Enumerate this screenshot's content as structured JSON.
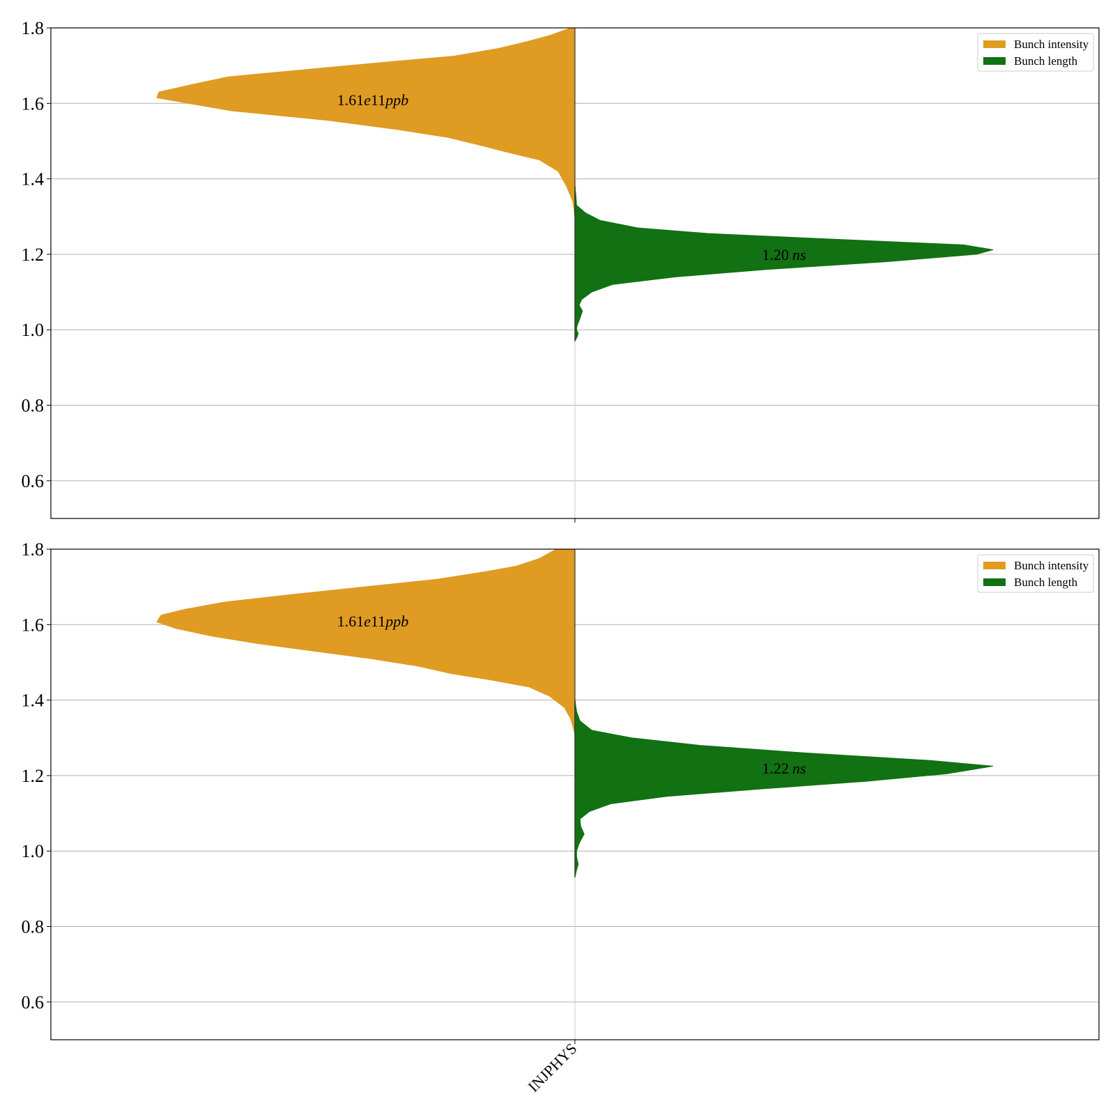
{
  "colors": {
    "intensity": "#df9b22",
    "length": "#127113",
    "grid": "#b0b0b0",
    "axis": "#000000"
  },
  "chart_data": [
    {
      "type": "violin",
      "title": "",
      "xlabel": "",
      "ylabel": "",
      "categories": [
        "INJPHYS"
      ],
      "show_category_labels": false,
      "ylim": [
        0.5,
        1.8
      ],
      "yticks": [
        0.6,
        0.8,
        1.0,
        1.2,
        1.4,
        1.6,
        1.8
      ],
      "grid": "y",
      "legend": {
        "placement": "top-right",
        "entries": [
          "Bunch intensity",
          "Bunch length"
        ]
      },
      "series": [
        {
          "name": "Bunch intensity",
          "side": "left",
          "color": "#df9b22",
          "annotation": {
            "base": "1.61",
            "exp": "e11",
            "unit": "ppb",
            "y": 1.61
          },
          "profile": [
            [
              1.3,
              0.0
            ],
            [
              1.34,
              0.005
            ],
            [
              1.38,
              0.02
            ],
            [
              1.42,
              0.04
            ],
            [
              1.45,
              0.085
            ],
            [
              1.47,
              0.16
            ],
            [
              1.49,
              0.23
            ],
            [
              1.51,
              0.305
            ],
            [
              1.53,
              0.42
            ],
            [
              1.555,
              0.59
            ],
            [
              1.58,
              0.82
            ],
            [
              1.6,
              0.925
            ],
            [
              1.615,
              1.0
            ],
            [
              1.63,
              0.995
            ],
            [
              1.65,
              0.915
            ],
            [
              1.67,
              0.83
            ],
            [
              1.69,
              0.64
            ],
            [
              1.71,
              0.445
            ],
            [
              1.725,
              0.29
            ],
            [
              1.745,
              0.185
            ],
            [
              1.765,
              0.11
            ],
            [
              1.78,
              0.06
            ],
            [
              1.8,
              0.01
            ]
          ]
        },
        {
          "name": "Bunch length",
          "side": "right",
          "color": "#127113",
          "annotation": {
            "base": "1.20",
            "unit": "ns",
            "y": 1.2
          },
          "profile": [
            [
              0.97,
              0.0
            ],
            [
              0.98,
              0.005
            ],
            [
              0.99,
              0.008
            ],
            [
              1.0,
              0.004
            ],
            [
              1.01,
              0.005
            ],
            [
              1.03,
              0.012
            ],
            [
              1.05,
              0.018
            ],
            [
              1.065,
              0.01
            ],
            [
              1.08,
              0.016
            ],
            [
              1.1,
              0.04
            ],
            [
              1.12,
              0.09
            ],
            [
              1.14,
              0.24
            ],
            [
              1.16,
              0.46
            ],
            [
              1.18,
              0.74
            ],
            [
              1.2,
              0.96
            ],
            [
              1.212,
              1.0
            ],
            [
              1.225,
              0.93
            ],
            [
              1.24,
              0.62
            ],
            [
              1.255,
              0.32
            ],
            [
              1.27,
              0.15
            ],
            [
              1.29,
              0.06
            ],
            [
              1.31,
              0.025
            ],
            [
              1.33,
              0.004
            ],
            [
              1.36,
              0.002
            ],
            [
              1.38,
              0.0
            ]
          ]
        }
      ]
    },
    {
      "type": "violin",
      "title": "",
      "xlabel": "",
      "ylabel": "",
      "categories": [
        "INJPHYS"
      ],
      "show_category_labels": true,
      "ylim": [
        0.5,
        1.8
      ],
      "yticks": [
        0.6,
        0.8,
        1.0,
        1.2,
        1.4,
        1.6,
        1.8
      ],
      "grid": "y",
      "legend": {
        "placement": "top-right",
        "entries": [
          "Bunch intensity",
          "Bunch length"
        ]
      },
      "series": [
        {
          "name": "Bunch intensity",
          "side": "left",
          "color": "#df9b22",
          "annotation": {
            "base": "1.61",
            "exp": "e11",
            "unit": "ppb",
            "y": 1.61
          },
          "profile": [
            [
              1.31,
              0.0
            ],
            [
              1.35,
              0.01
            ],
            [
              1.38,
              0.025
            ],
            [
              1.41,
              0.06
            ],
            [
              1.435,
              0.11
            ],
            [
              1.455,
              0.21
            ],
            [
              1.47,
              0.295
            ],
            [
              1.49,
              0.375
            ],
            [
              1.51,
              0.49
            ],
            [
              1.53,
              0.625
            ],
            [
              1.55,
              0.76
            ],
            [
              1.57,
              0.87
            ],
            [
              1.59,
              0.955
            ],
            [
              1.607,
              1.0
            ],
            [
              1.625,
              0.99
            ],
            [
              1.64,
              0.935
            ],
            [
              1.66,
              0.835
            ],
            [
              1.68,
              0.675
            ],
            [
              1.7,
              0.505
            ],
            [
              1.72,
              0.33
            ],
            [
              1.74,
              0.215
            ],
            [
              1.755,
              0.14
            ],
            [
              1.775,
              0.085
            ],
            [
              1.8,
              0.045
            ]
          ]
        },
        {
          "name": "Bunch length",
          "side": "right",
          "color": "#127113",
          "annotation": {
            "base": "1.22",
            "unit": "ns",
            "y": 1.22
          },
          "profile": [
            [
              0.93,
              0.0
            ],
            [
              0.95,
              0.004
            ],
            [
              0.965,
              0.008
            ],
            [
              0.985,
              0.004
            ],
            [
              1.0,
              0.004
            ],
            [
              1.02,
              0.01
            ],
            [
              1.045,
              0.022
            ],
            [
              1.065,
              0.014
            ],
            [
              1.085,
              0.012
            ],
            [
              1.105,
              0.035
            ],
            [
              1.125,
              0.085
            ],
            [
              1.145,
              0.22
            ],
            [
              1.165,
              0.45
            ],
            [
              1.185,
              0.7
            ],
            [
              1.205,
              0.89
            ],
            [
              1.225,
              1.0
            ],
            [
              1.24,
              0.85
            ],
            [
              1.26,
              0.55
            ],
            [
              1.28,
              0.3
            ],
            [
              1.3,
              0.135
            ],
            [
              1.32,
              0.04
            ],
            [
              1.345,
              0.012
            ],
            [
              1.37,
              0.004
            ],
            [
              1.4,
              0.0
            ]
          ]
        }
      ]
    }
  ]
}
